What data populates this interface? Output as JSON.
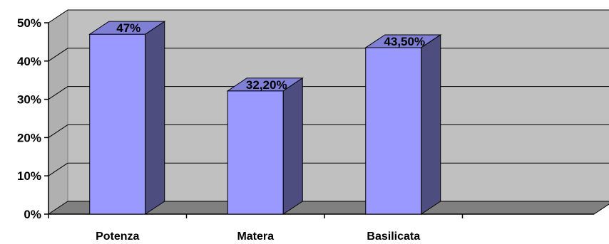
{
  "chart_data": {
    "type": "bar",
    "title": "",
    "xlabel": "",
    "ylabel": "",
    "categories": [
      "Potenza",
      "Matera",
      "Basilicata"
    ],
    "values": [
      47,
      32.2,
      43.5
    ],
    "data_labels": [
      "47%",
      "32,20%",
      "43,50%"
    ],
    "y_ticks": [
      0,
      10,
      20,
      30,
      40,
      50
    ],
    "y_tick_labels": [
      "0%",
      "10%",
      "20%",
      "30%",
      "40%",
      "50%"
    ],
    "ylim": [
      0,
      50
    ],
    "grid": true,
    "legend": "none",
    "style": "3d-column",
    "colors": {
      "bar_front": "#9999ff",
      "bar_side": "#4d4d80",
      "bar_top": "#7f7fd6",
      "plot_wall": "#c0c0c0",
      "floor": "#808080"
    }
  }
}
